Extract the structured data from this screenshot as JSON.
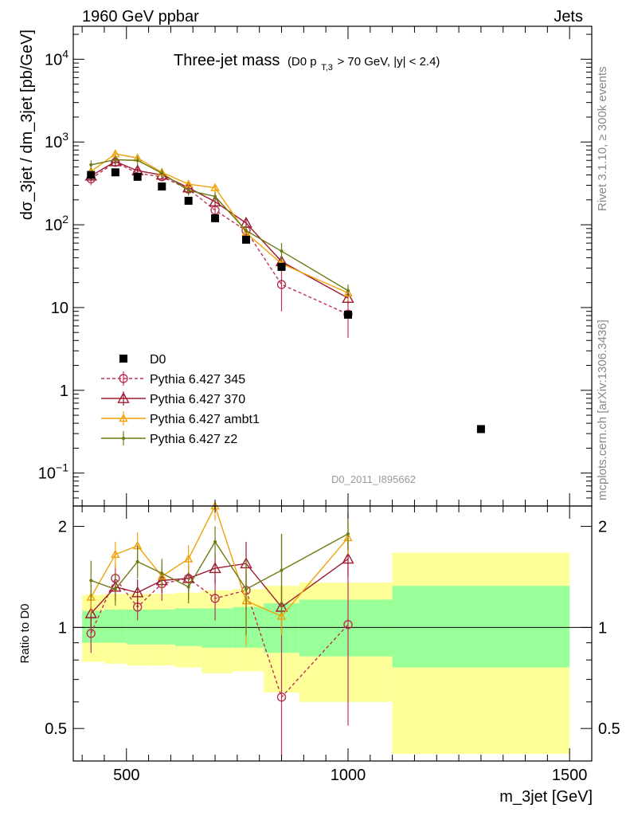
{
  "header": {
    "left": "1960 GeV ppbar",
    "right": "Jets"
  },
  "side_texts": {
    "rivet": "Rivet 3.1.10, ≥ 300k events",
    "mcplots": "mcplots.cern.ch [arXiv:1306.3436]"
  },
  "chart_data": [
    {
      "type": "scatter",
      "title": "Three-jet mass",
      "subtitle_parts": {
        "pre": "(D0 p",
        "sub": "T,3",
        "post": " > 70 GeV, |y| < 2.4)"
      },
      "ylabel": "dσ_3jet / dm_3jet [pb/GeV]",
      "watermark": "D0_2011_I895662",
      "yscale": "log",
      "xlim": [
        380,
        1550
      ],
      "ylim": [
        0.04,
        25000
      ],
      "yticks": [
        {
          "value": 10000,
          "base": "10",
          "exp": "4"
        },
        {
          "value": 1000,
          "base": "10",
          "exp": "3"
        },
        {
          "value": 100,
          "base": "10",
          "exp": "2"
        },
        {
          "value": 10,
          "base": "10",
          "exp": ""
        },
        {
          "value": 1,
          "base": "1",
          "exp": ""
        },
        {
          "value": 0.1,
          "base": "10",
          "exp": "−1"
        }
      ],
      "legend_position": "bottom-left",
      "data": {
        "name": "D0",
        "x": [
          420,
          475,
          525,
          580,
          640,
          700,
          770,
          850,
          1000,
          1300
        ],
        "y": [
          400,
          430,
          380,
          290,
          195,
          120,
          66,
          31,
          8.2,
          0.34
        ]
      },
      "series": [
        {
          "name": "Pythia 6.427 345",
          "color": "#bb3355",
          "marker": "circle",
          "dashed": true,
          "x": [
            420,
            475,
            525,
            580,
            640,
            700,
            770,
            850,
            1000
          ],
          "y": [
            360,
            570,
            420,
            380,
            270,
            150,
            85,
            19,
            8.3
          ],
          "yerr": [
            60,
            70,
            50,
            40,
            30,
            30,
            15,
            10,
            4
          ]
        },
        {
          "name": "Pythia 6.427 370",
          "color": "#9e1b32",
          "marker": "triangle",
          "dashed": false,
          "x": [
            420,
            475,
            525,
            580,
            640,
            700,
            770,
            850,
            1000
          ],
          "y": [
            390,
            580,
            450,
            400,
            280,
            190,
            105,
            36,
            13
          ],
          "yerr": [
            50,
            60,
            50,
            40,
            30,
            25,
            15,
            6,
            2
          ]
        },
        {
          "name": "Pythia 6.427 ambt1",
          "color": "#f0a20a",
          "marker": "triangle-small",
          "dashed": false,
          "x": [
            420,
            475,
            525,
            580,
            640,
            700,
            770,
            850,
            1000
          ],
          "y": [
            440,
            720,
            640,
            430,
            310,
            280,
            80,
            34,
            15
          ],
          "yerr": [
            60,
            80,
            70,
            50,
            35,
            30,
            15,
            6,
            3
          ]
        },
        {
          "name": "Pythia 6.427 z2",
          "color": "#6e7b12",
          "marker": "dot",
          "dashed": false,
          "x": [
            420,
            475,
            525,
            580,
            640,
            700,
            770,
            850,
            1000
          ],
          "y": [
            530,
            610,
            600,
            420,
            260,
            220,
            85,
            48,
            16
          ],
          "yerr": [
            70,
            80,
            70,
            50,
            35,
            30,
            15,
            12,
            3
          ]
        }
      ]
    },
    {
      "type": "scatter",
      "ylabel": "Ratio to D0",
      "xlabel": "m_3jet [GeV]",
      "yscale": "log",
      "xlim": [
        380,
        1550
      ],
      "ylim": [
        0.4,
        2.3
      ],
      "xticks": [
        500,
        1000,
        1500
      ],
      "yticks": [
        0.5,
        1,
        2
      ],
      "bands": [
        {
          "x0": 400,
          "x1": 450,
          "g_lo": 0.9,
          "g_hi": 1.12,
          "y_lo": 0.79,
          "y_hi": 1.25
        },
        {
          "x0": 450,
          "x1": 500,
          "g_lo": 0.9,
          "g_hi": 1.13,
          "y_lo": 0.78,
          "y_hi": 1.26
        },
        {
          "x0": 500,
          "x1": 550,
          "g_lo": 0.89,
          "g_hi": 1.13,
          "y_lo": 0.77,
          "y_hi": 1.26
        },
        {
          "x0": 550,
          "x1": 610,
          "g_lo": 0.89,
          "g_hi": 1.13,
          "y_lo": 0.77,
          "y_hi": 1.26
        },
        {
          "x0": 610,
          "x1": 670,
          "g_lo": 0.88,
          "g_hi": 1.14,
          "y_lo": 0.76,
          "y_hi": 1.27
        },
        {
          "x0": 670,
          "x1": 740,
          "g_lo": 0.87,
          "g_hi": 1.14,
          "y_lo": 0.73,
          "y_hi": 1.29
        },
        {
          "x0": 740,
          "x1": 810,
          "g_lo": 0.87,
          "g_hi": 1.15,
          "y_lo": 0.74,
          "y_hi": 1.3
        },
        {
          "x0": 810,
          "x1": 890,
          "g_lo": 0.84,
          "g_hi": 1.18,
          "y_lo": 0.64,
          "y_hi": 1.33
        },
        {
          "x0": 890,
          "x1": 1100,
          "g_lo": 0.82,
          "g_hi": 1.21,
          "y_lo": 0.6,
          "y_hi": 1.36
        },
        {
          "x0": 1100,
          "x1": 1500,
          "g_lo": 0.76,
          "g_hi": 1.33,
          "y_lo": 0.42,
          "y_hi": 1.67
        }
      ],
      "series": [
        {
          "name": "Pythia 6.427 345",
          "x": [
            420,
            475,
            525,
            580,
            640,
            700,
            770,
            850,
            1000
          ],
          "y": [
            0.96,
            1.4,
            1.15,
            1.35,
            1.4,
            1.22,
            1.29,
            0.62,
            1.02
          ],
          "ylo": [
            0.84,
            1.23,
            1.05,
            1.2,
            1.22,
            1.05,
            1.12,
            0.3,
            0.51
          ],
          "yhi": [
            1.08,
            1.55,
            1.25,
            1.48,
            1.55,
            1.4,
            1.45,
            1.9,
            2.2
          ]
        },
        {
          "name": "Pythia 6.427 370",
          "x": [
            420,
            475,
            525,
            580,
            640,
            700,
            770,
            850,
            1000
          ],
          "y": [
            1.1,
            1.32,
            1.27,
            1.38,
            1.4,
            1.5,
            1.55,
            1.15,
            1.6
          ],
          "ylo": [
            1.0,
            1.2,
            1.15,
            1.27,
            1.28,
            1.35,
            1.3,
            0.98,
            1.42
          ],
          "yhi": [
            1.2,
            1.45,
            1.39,
            1.5,
            1.52,
            1.66,
            1.8,
            1.33,
            1.8
          ]
        },
        {
          "name": "Pythia 6.427 ambt1",
          "x": [
            420,
            475,
            525,
            580,
            640,
            700,
            770,
            850,
            1000
          ],
          "y": [
            1.23,
            1.65,
            1.75,
            1.42,
            1.6,
            2.3,
            1.2,
            1.08,
            1.85
          ],
          "ylo": [
            1.1,
            1.5,
            1.58,
            1.3,
            1.45,
            2.08,
            0.88,
            0.95,
            1.65
          ],
          "yhi": [
            1.36,
            1.8,
            1.92,
            1.55,
            1.76,
            2.5,
            1.5,
            1.22,
            2.05
          ]
        },
        {
          "name": "Pythia 6.427 z2",
          "x": [
            420,
            475,
            525,
            580,
            640,
            700,
            770,
            850,
            1000
          ],
          "y": [
            1.38,
            1.3,
            1.57,
            1.45,
            1.32,
            1.8,
            1.3,
            1.48,
            1.9
          ],
          "ylo": [
            1.2,
            1.16,
            1.4,
            1.3,
            1.18,
            1.6,
            0.95,
            1.1,
            1.7
          ],
          "yhi": [
            1.58,
            1.45,
            1.75,
            1.6,
            1.46,
            2.0,
            1.6,
            1.9,
            2.1
          ]
        }
      ]
    }
  ]
}
